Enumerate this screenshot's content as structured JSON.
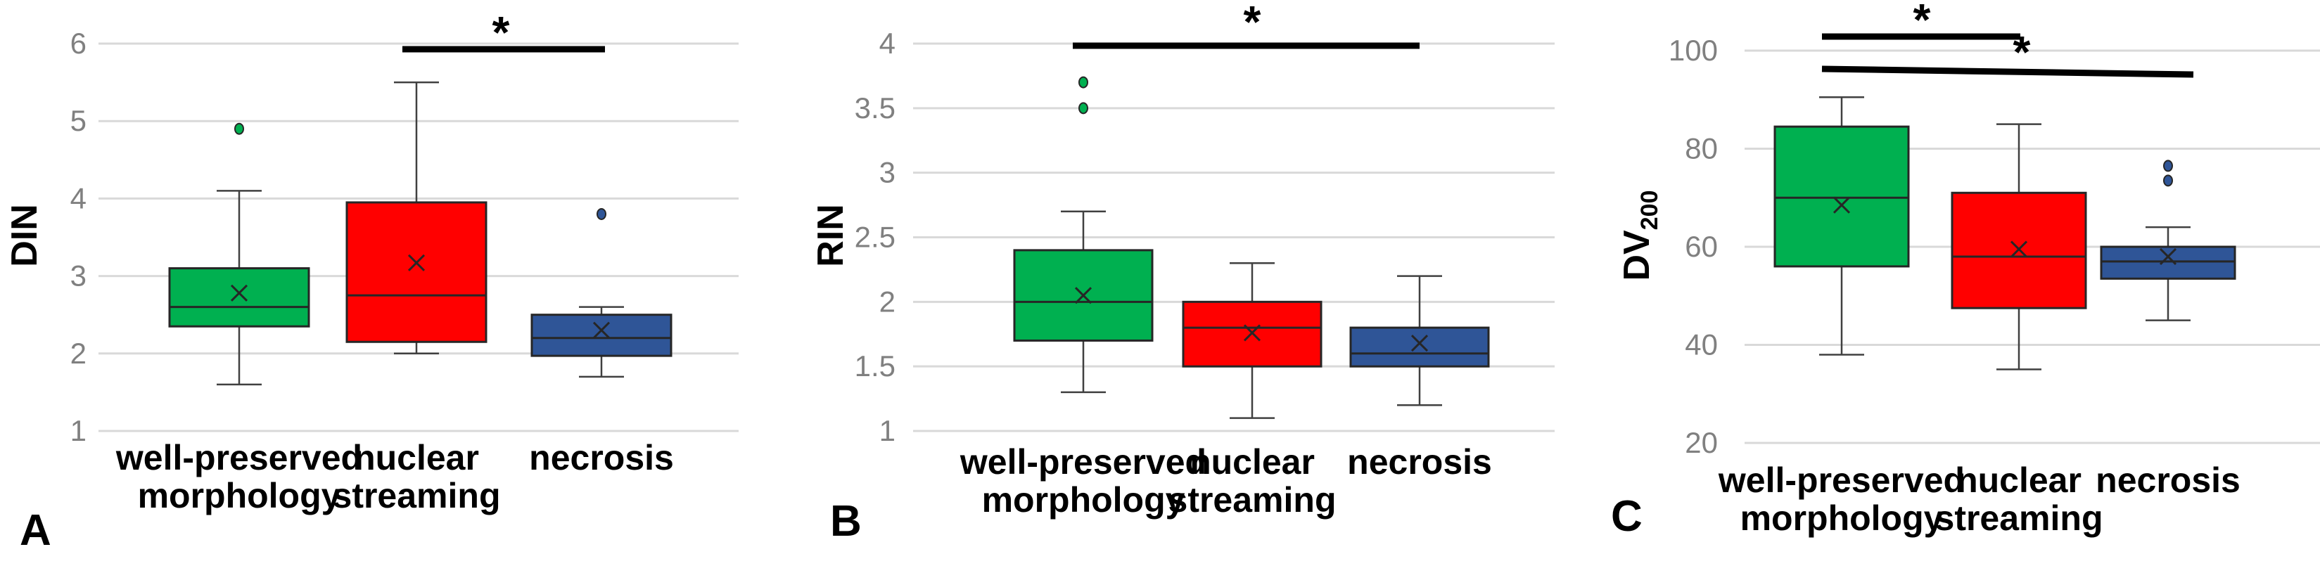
{
  "chart_data": [
    {
      "type": "box",
      "panel_label": "A",
      "ylabel": "DIN",
      "ylabel_sub": "",
      "ylim": [
        1,
        6
      ],
      "yticks": [
        "1",
        "2",
        "3",
        "4",
        "5",
        "6"
      ],
      "categories": [
        [
          "well-preserved",
          "morphology"
        ],
        [
          "nuclear",
          "streaming"
        ],
        [
          "necrosis"
        ]
      ],
      "boxes": [
        {
          "name": "well-preserved morphology",
          "color": "#00b050",
          "whisker_low": 1.6,
          "q1": 2.35,
          "median": 2.6,
          "q3": 3.1,
          "whisker_high": 4.1,
          "mean": 2.78,
          "outliers": [
            4.9
          ]
        },
        {
          "name": "nuclear streaming",
          "color": "#ff0000",
          "whisker_low": 2.0,
          "q1": 2.15,
          "median": 2.75,
          "q3": 3.95,
          "whisker_high": 5.5,
          "mean": 3.17,
          "outliers": []
        },
        {
          "name": "necrosis",
          "color": "#2f5597",
          "whisker_low": 1.7,
          "q1": 1.97,
          "median": 2.2,
          "q3": 2.5,
          "whisker_high": 2.6,
          "mean": 2.3,
          "outliers": [
            3.8
          ]
        }
      ],
      "significance": [
        {
          "from": 1,
          "to": 2,
          "label": "*"
        }
      ]
    },
    {
      "type": "box",
      "panel_label": "B",
      "ylabel": "RIN",
      "ylabel_sub": "",
      "ylim": [
        1,
        4
      ],
      "yticks": [
        "1",
        "1.5",
        "2",
        "2.5",
        "3",
        "3.5",
        "4"
      ],
      "categories": [
        [
          "well-preserved",
          "morphology"
        ],
        [
          "nuclear",
          "streaming"
        ],
        [
          "necrosis"
        ]
      ],
      "boxes": [
        {
          "name": "well-preserved morphology",
          "color": "#00b050",
          "whisker_low": 1.3,
          "q1": 1.7,
          "median": 2.0,
          "q3": 2.4,
          "whisker_high": 2.7,
          "mean": 2.05,
          "outliers": [
            3.5,
            3.7
          ]
        },
        {
          "name": "nuclear streaming",
          "color": "#ff0000",
          "whisker_low": 1.1,
          "q1": 1.5,
          "median": 1.8,
          "q3": 2.0,
          "whisker_high": 2.3,
          "mean": 1.76,
          "outliers": []
        },
        {
          "name": "necrosis",
          "color": "#2f5597",
          "whisker_low": 1.2,
          "q1": 1.5,
          "median": 1.6,
          "q3": 1.8,
          "whisker_high": 2.2,
          "mean": 1.68,
          "outliers": []
        }
      ],
      "significance": [
        {
          "from": 0,
          "to": 2,
          "label": "*"
        }
      ]
    },
    {
      "type": "box",
      "panel_label": "C",
      "ylabel": "DV",
      "ylabel_sub": "200",
      "ylim": [
        20,
        100
      ],
      "yticks": [
        "20",
        "40",
        "60",
        "80",
        "100"
      ],
      "categories": [
        [
          "well-preserved",
          "morphology"
        ],
        [
          "nuclear",
          "streaming"
        ],
        [
          "necrosis"
        ]
      ],
      "boxes": [
        {
          "name": "well-preserved morphology",
          "color": "#00b050",
          "whisker_low": 38,
          "q1": 56,
          "median": 70,
          "q3": 84.5,
          "whisker_high": 90.5,
          "mean": 68.5,
          "outliers": []
        },
        {
          "name": "nuclear streaming",
          "color": "#ff0000",
          "whisker_low": 35,
          "q1": 47.5,
          "median": 58,
          "q3": 71,
          "whisker_high": 85,
          "mean": 59.5,
          "outliers": []
        },
        {
          "name": "necrosis",
          "color": "#2f5597",
          "whisker_low": 45,
          "q1": 53.5,
          "median": 57,
          "q3": 60,
          "whisker_high": 64,
          "mean": 58,
          "outliers": [
            73.5,
            76.5
          ]
        }
      ],
      "significance": [
        {
          "from": 0,
          "to": 1,
          "label": "*"
        },
        {
          "from": 0,
          "to": 2,
          "label": "*"
        }
      ]
    }
  ]
}
